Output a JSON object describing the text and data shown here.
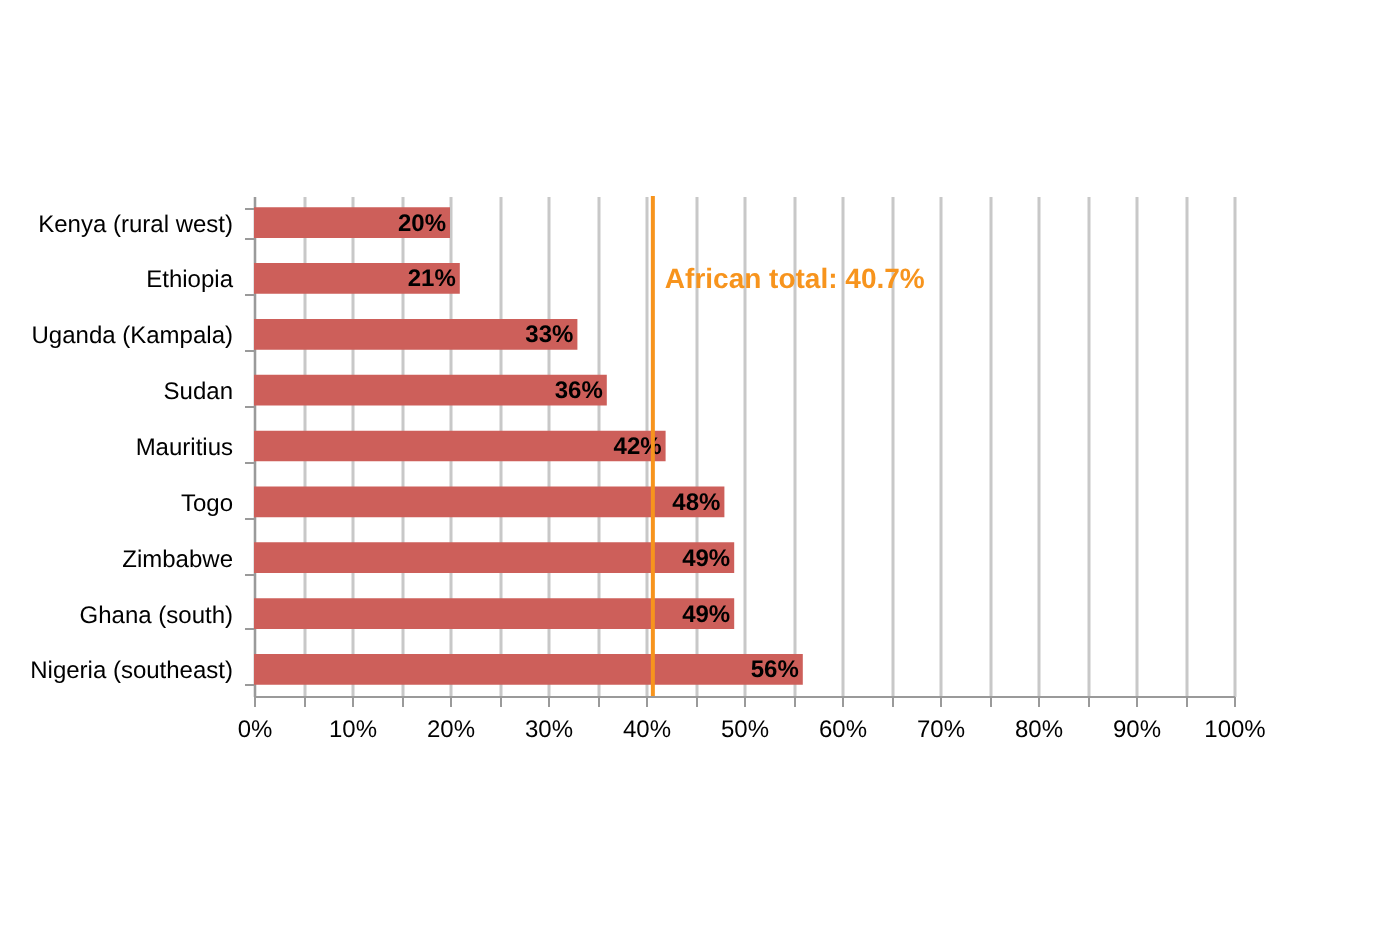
{
  "chart_data": {
    "type": "bar",
    "orientation": "horizontal",
    "categories": [
      "Kenya (rural west)",
      "Ethiopia",
      "Uganda (Kampala)",
      "Sudan",
      "Mauritius",
      "Togo",
      "Zimbabwe",
      "Ghana (south)",
      "Nigeria (southeast)"
    ],
    "values": [
      20,
      21,
      33,
      36,
      42,
      48,
      49,
      49,
      56
    ],
    "color": "#cd5f5a",
    "data_labels": true,
    "value_labels": [
      "20%",
      "21%",
      "33%",
      "36%",
      "42%",
      "48%",
      "49%",
      "49%",
      "56%"
    ],
    "xlim": [
      0,
      100
    ],
    "xticks": [
      {
        "value": 0,
        "label": "0%"
      },
      {
        "value": 5,
        "label": null
      },
      {
        "value": 10,
        "label": "10%"
      },
      {
        "value": 15,
        "label": null
      },
      {
        "value": 20,
        "label": "20%"
      },
      {
        "value": 25,
        "label": null
      },
      {
        "value": 30,
        "label": "30%"
      },
      {
        "value": 35,
        "label": null
      },
      {
        "value": 40,
        "label": "40%"
      },
      {
        "value": 45,
        "label": null
      },
      {
        "value": 50,
        "label": "50%"
      },
      {
        "value": 55,
        "label": null
      },
      {
        "value": 60,
        "label": "60%"
      },
      {
        "value": 65,
        "label": null
      },
      {
        "value": 70,
        "label": "70%"
      },
      {
        "value": 75,
        "label": null
      },
      {
        "value": 80,
        "label": "80%"
      },
      {
        "value": 85,
        "label": null
      },
      {
        "value": 90,
        "label": "90%"
      },
      {
        "value": 95,
        "label": null
      },
      {
        "value": 100,
        "label": "100%"
      }
    ],
    "grid": "x",
    "ref_lines": [
      {
        "axis": "x",
        "value": 40.7,
        "label": "African total: 40.7%",
        "color": "#f7941d"
      }
    ]
  }
}
